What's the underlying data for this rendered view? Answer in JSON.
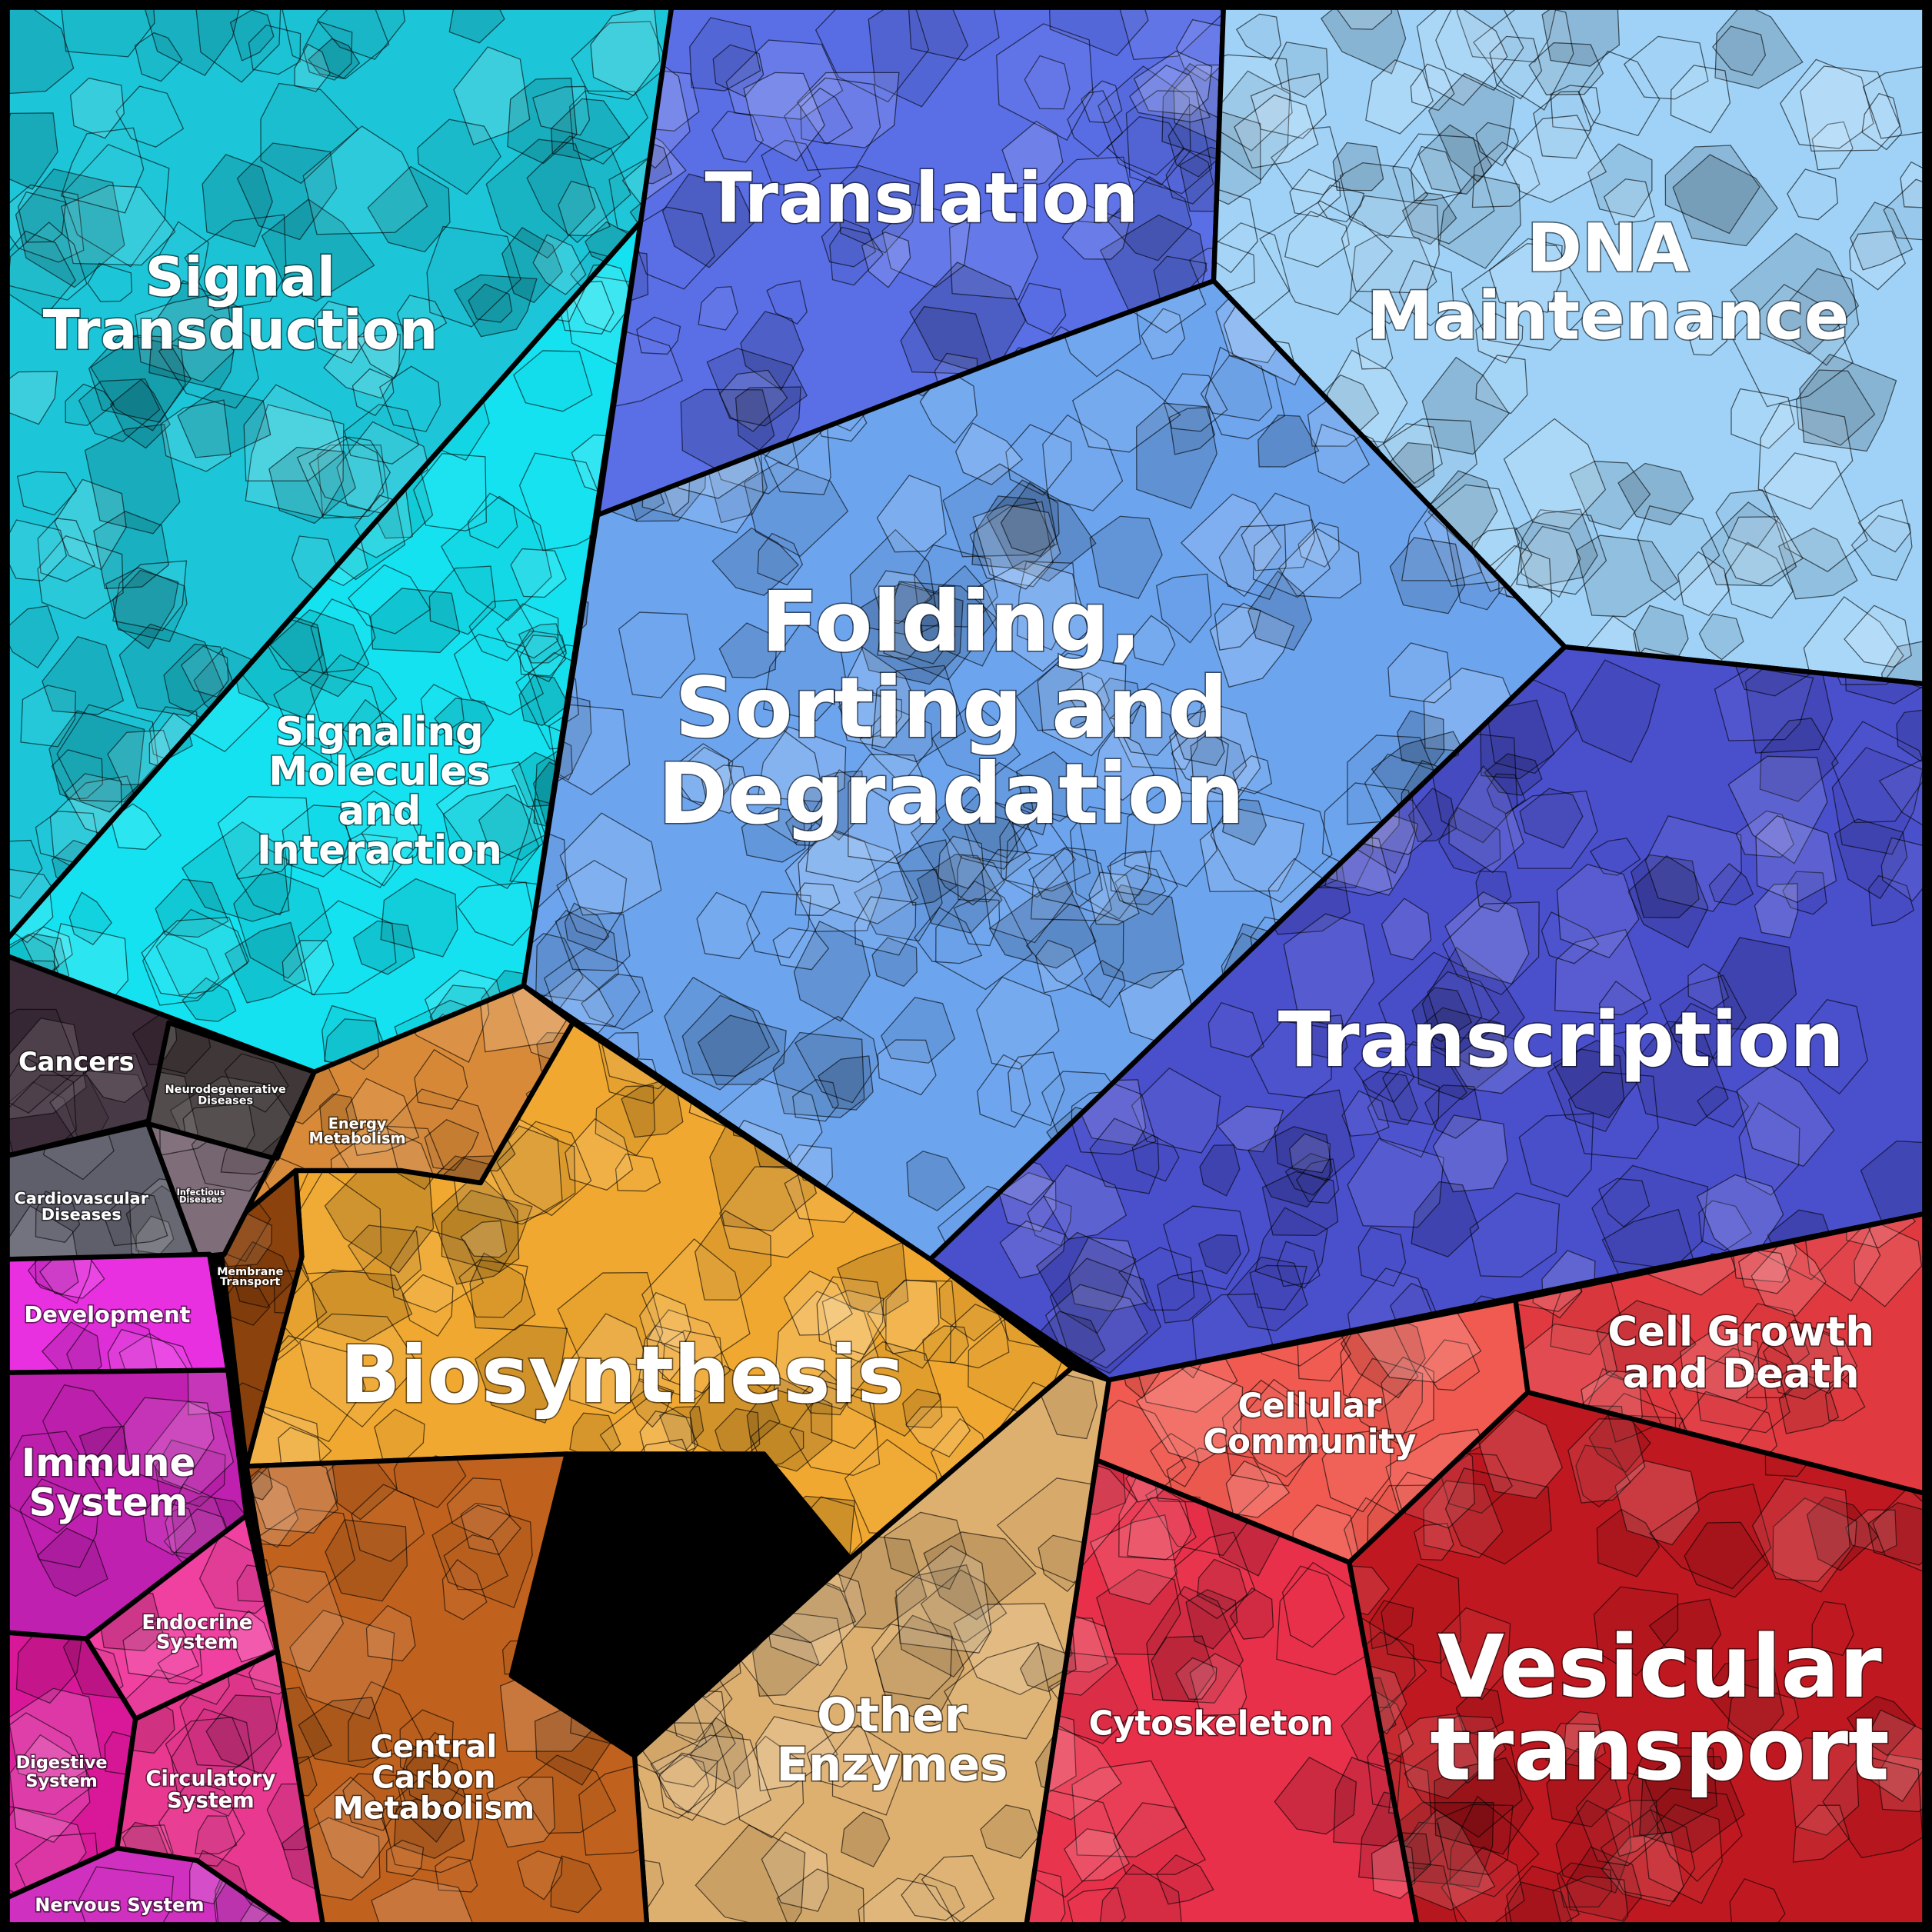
{
  "regions": [
    {
      "id": "signal-transduction",
      "label": [
        "Signal",
        "Transduction"
      ],
      "color": "#1cc6d8"
    },
    {
      "id": "signaling-molecules",
      "label": [
        "Signaling",
        "Molecules",
        "and",
        "Interaction"
      ],
      "color": "#14e2f0"
    },
    {
      "id": "translation",
      "label": [
        "Translation"
      ],
      "color": "#5a6ee6"
    },
    {
      "id": "dna-maintenance",
      "label": [
        "DNA",
        "Maintenance"
      ],
      "color": "#9fd2f6"
    },
    {
      "id": "folding",
      "label": [
        "Folding,",
        "Sorting and",
        "Degradation"
      ],
      "color": "#6ca4ee"
    },
    {
      "id": "transcription",
      "label": [
        "Transcription"
      ],
      "color": "#4a4fcc"
    },
    {
      "id": "cellular-community",
      "label": [
        "Cellular",
        "Community"
      ],
      "color": "#f05a50"
    },
    {
      "id": "cell-growth",
      "label": [
        "Cell Growth",
        "and Death"
      ],
      "color": "#e03a40"
    },
    {
      "id": "vesicular-transport",
      "label": [
        "Vesicular",
        "transport"
      ],
      "color": "#c01820"
    },
    {
      "id": "cytoskeleton",
      "label": [
        "Cytoskeleton"
      ],
      "color": "#e8304a"
    },
    {
      "id": "biosynthesis",
      "label": [
        "Biosynthesis"
      ],
      "color": "#f0a830"
    },
    {
      "id": "other-enzymes",
      "label": [
        "Other",
        "Enzymes"
      ],
      "color": "#deb070"
    },
    {
      "id": "central-carbon",
      "label": [
        "Central",
        "Carbon",
        "Metabolism"
      ],
      "color": "#c0621e"
    },
    {
      "id": "energy-metabolism",
      "label": [
        "Energy",
        "Metabolism"
      ],
      "color": "#d98a38"
    },
    {
      "id": "membrane-transport",
      "label": [
        "Membrane",
        "Transport"
      ],
      "color": "#8c420c"
    },
    {
      "id": "cancers",
      "label": [
        "Cancers"
      ],
      "color": "#3b2a38"
    },
    {
      "id": "neurodegenerative",
      "label": [
        "Neurodegenerative",
        "Diseases"
      ],
      "color": "#403838"
    },
    {
      "id": "cardiovascular",
      "label": [
        "Cardiovascular",
        "Diseases"
      ],
      "color": "#5f5f6c"
    },
    {
      "id": "infectious",
      "label": [
        "Infectious",
        "Diseases"
      ],
      "color": "#7f6e7a"
    },
    {
      "id": "development",
      "label": [
        "Development"
      ],
      "color": "#e830e0"
    },
    {
      "id": "immune-system",
      "label": [
        "Immune",
        "System"
      ],
      "color": "#c020b0"
    },
    {
      "id": "endocrine-system",
      "label": [
        "Endocrine",
        "System"
      ],
      "color": "#f040a0"
    },
    {
      "id": "digestive-system",
      "label": [
        "Digestive",
        "System"
      ],
      "color": "#d81898"
    },
    {
      "id": "circulatory-system",
      "label": [
        "Circulatory",
        "System"
      ],
      "color": "#e83890"
    },
    {
      "id": "nervous-system",
      "label": [
        "Nervous System"
      ],
      "color": "#d030c0"
    }
  ]
}
